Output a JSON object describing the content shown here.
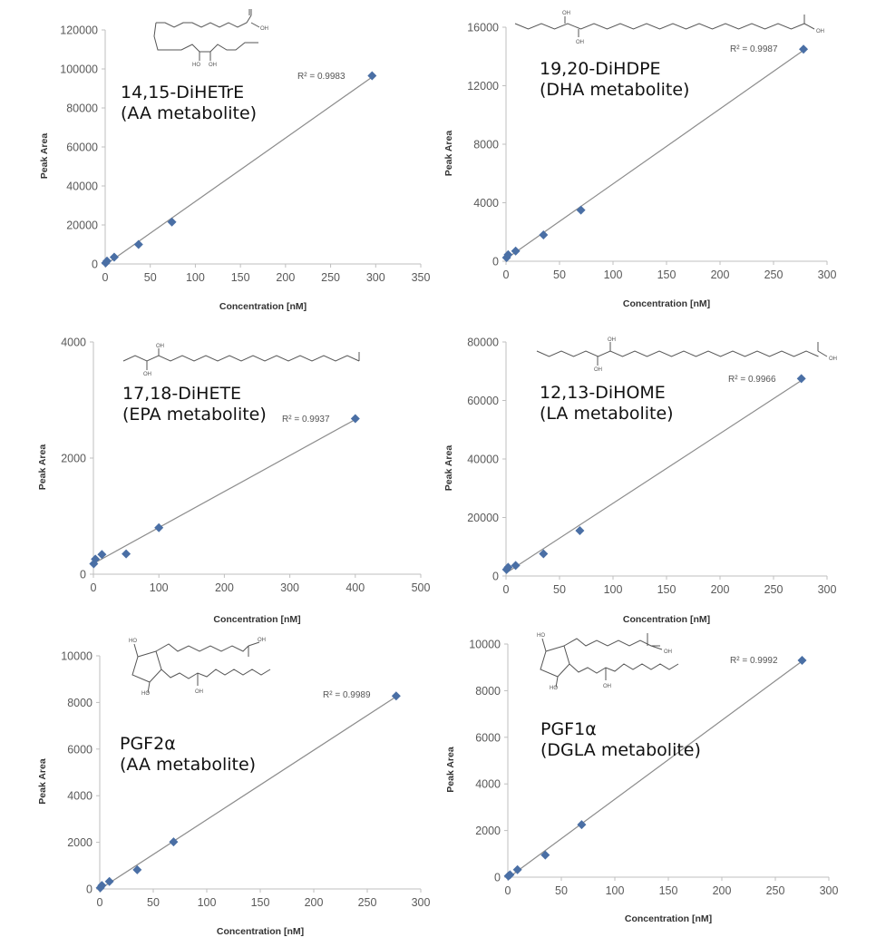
{
  "colors": {
    "marker": "#4a6fa5",
    "trendline": "#8c8c8c",
    "axis": "#bfbfbf",
    "text": "#595959"
  },
  "chart_data": [
    {
      "type": "scatter",
      "title": "14,15-DiHETrE",
      "subtitle": "(AA metabolite)",
      "xlabel": "Concentration [nM]",
      "ylabel": "Peak Area",
      "xlim": [
        0,
        350
      ],
      "ylim": [
        0,
        120000
      ],
      "xticks": [
        0,
        50,
        100,
        150,
        200,
        250,
        300,
        350
      ],
      "yticks": [
        0,
        20000,
        40000,
        60000,
        80000,
        100000,
        120000
      ],
      "x": [
        0.5,
        2,
        10,
        37,
        74,
        296
      ],
      "y": [
        500,
        1500,
        3500,
        10000,
        21500,
        96500
      ],
      "trendline": "linear",
      "annotation": "R² = 0.9983",
      "grid": false,
      "structure_labels": [
        "OH",
        "HO",
        "OH"
      ]
    },
    {
      "type": "scatter",
      "title": "19,20-DiHDPE",
      "subtitle": "(DHA metabolite)",
      "xlabel": "Concentration [nM]",
      "ylabel": "Peak Area",
      "xlim": [
        0,
        300
      ],
      "ylim": [
        0,
        16000
      ],
      "xticks": [
        0,
        50,
        100,
        150,
        200,
        250,
        300
      ],
      "yticks": [
        0,
        4000,
        8000,
        12000,
        16000
      ],
      "x": [
        0.5,
        2,
        9,
        35,
        70,
        278
      ],
      "y": [
        250,
        450,
        700,
        1800,
        3500,
        14500
      ],
      "trendline": "linear",
      "annotation": "R² = 0.9987",
      "grid": false,
      "structure_labels": [
        "OH",
        "OH",
        "OH"
      ]
    },
    {
      "type": "scatter",
      "title": "17,18-DiHETE",
      "subtitle": "(EPA metabolite)",
      "xlabel": "Concentration [nM]",
      "ylabel": "Peak Area",
      "xlim": [
        0,
        500
      ],
      "ylim": [
        0,
        4000
      ],
      "xticks": [
        0,
        100,
        200,
        300,
        400,
        500
      ],
      "yticks": [
        0,
        2000,
        4000
      ],
      "x": [
        0.5,
        3,
        13,
        50,
        100,
        400
      ],
      "y": [
        180,
        260,
        340,
        350,
        800,
        2680
      ],
      "trendline": "linear",
      "annotation": "R² = 0.9937",
      "grid": false,
      "structure_labels": [
        "OH",
        "OH"
      ]
    },
    {
      "type": "scatter",
      "title": "12,13-DiHOME",
      "subtitle": "(LA metabolite)",
      "xlabel": "Concentration [nM]",
      "ylabel": "Peak Area",
      "xlim": [
        0,
        300
      ],
      "ylim": [
        0,
        80000
      ],
      "xticks": [
        0,
        50,
        100,
        150,
        200,
        250,
        300
      ],
      "yticks": [
        0,
        20000,
        40000,
        60000,
        80000
      ],
      "x": [
        0.5,
        2,
        9,
        35,
        69,
        276
      ],
      "y": [
        2200,
        3000,
        3600,
        7600,
        15500,
        67500
      ],
      "trendline": "linear",
      "annotation": "R² = 0.9966",
      "grid": false,
      "structure_labels": [
        "OH",
        "OH",
        "OH"
      ]
    },
    {
      "type": "scatter",
      "title": "PGF2α",
      "subtitle": "(AA metabolite)",
      "xlabel": "Concentration [nM]",
      "ylabel": "Peak Area",
      "xlim": [
        0,
        300
      ],
      "ylim": [
        0,
        10000
      ],
      "xticks": [
        0,
        50,
        100,
        150,
        200,
        250,
        300
      ],
      "yticks": [
        0,
        2000,
        4000,
        6000,
        8000,
        10000
      ],
      "x": [
        0.5,
        2,
        9,
        35,
        69,
        277
      ],
      "y": [
        50,
        150,
        320,
        820,
        2020,
        8280
      ],
      "trendline": "linear",
      "annotation": "R² = 0.9989",
      "grid": false,
      "structure_labels": [
        "HO",
        "OH",
        "HO",
        "OH"
      ]
    },
    {
      "type": "scatter",
      "title": "PGF1α",
      "subtitle": "(DGLA metabolite)",
      "xlabel": "Concentration [nM]",
      "ylabel": "Peak Area",
      "xlim": [
        0,
        300
      ],
      "ylim": [
        0,
        10000
      ],
      "xticks": [
        0,
        50,
        100,
        150,
        200,
        250,
        300
      ],
      "yticks": [
        0,
        2000,
        4000,
        6000,
        8000,
        10000
      ],
      "x": [
        0.5,
        2,
        9,
        35,
        69,
        275
      ],
      "y": [
        50,
        100,
        320,
        950,
        2250,
        9300
      ],
      "trendline": "linear",
      "annotation": "R² = 0.9992",
      "grid": false,
      "structure_labels": [
        "HO",
        "OH",
        "HO",
        "OH"
      ]
    }
  ]
}
